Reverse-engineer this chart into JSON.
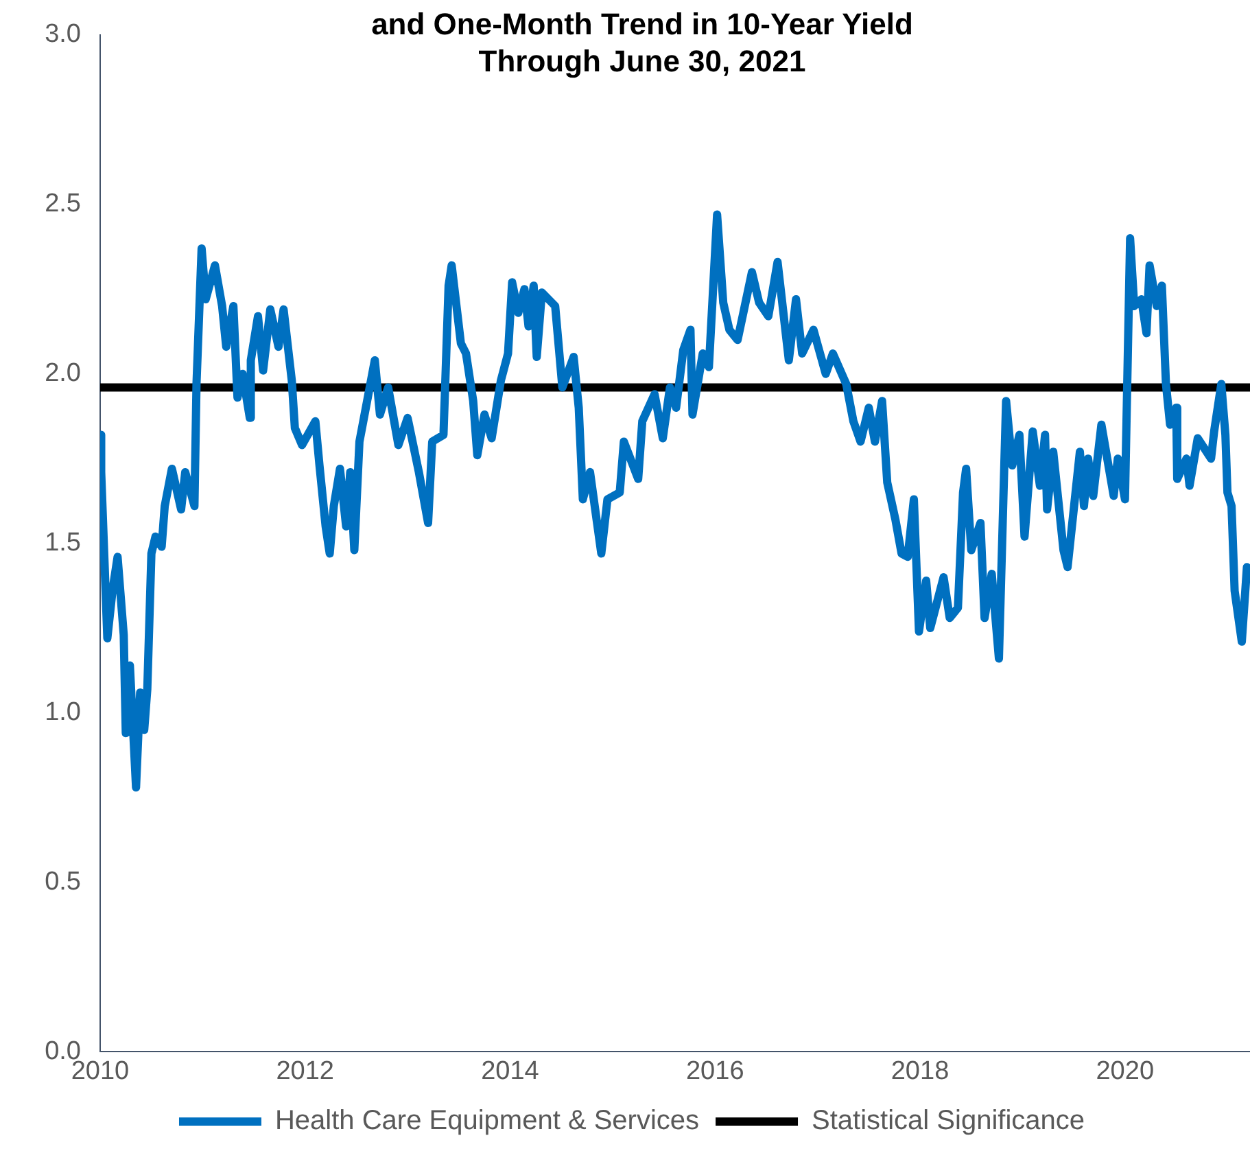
{
  "chart_data": {
    "type": "line",
    "title": "and One-Month Trend in 10-Year Yield\nThrough June 30, 2021",
    "xlim": [
      2010,
      2021.22
    ],
    "xticks": [
      2010,
      2012,
      2014,
      2016,
      2018,
      2020
    ],
    "ylim": [
      0,
      3
    ],
    "yticks": [
      {
        "value": 0,
        "label": "0.0"
      },
      {
        "value": 0.5,
        "label": "0.5"
      },
      {
        "value": 1,
        "label": "1.0"
      },
      {
        "value": 1.5,
        "label": "1.5"
      },
      {
        "value": 2,
        "label": "2.0"
      },
      {
        "value": 2.5,
        "label": "2.5"
      },
      {
        "value": 3,
        "label": "3.0"
      }
    ],
    "grid": false,
    "legend": "bottom",
    "marker": "none",
    "line_style": "solid",
    "series": [
      {
        "name": "Health Care Equipment & Services",
        "color": "#0070c0",
        "x": [
          2010.0,
          2010.01,
          2010.07,
          2010.12,
          2010.17,
          2010.23,
          2010.25,
          2010.29,
          2010.35,
          2010.39,
          2010.43,
          2010.46,
          2010.5,
          2010.54,
          2010.6,
          2010.63,
          2010.7,
          2010.79,
          2010.83,
          2010.92,
          2010.94,
          2010.99,
          2011.03,
          2011.12,
          2011.19,
          2011.23,
          2011.3,
          2011.34,
          2011.39,
          2011.46,
          2011.47,
          2011.54,
          2011.59,
          2011.66,
          2011.74,
          2011.79,
          2011.87,
          2011.9,
          2011.97,
          2012.1,
          2012.14,
          2012.2,
          2012.24,
          2012.28,
          2012.34,
          2012.4,
          2012.44,
          2012.48,
          2012.53,
          2012.68,
          2012.73,
          2012.81,
          2012.91,
          2013.0,
          2013.11,
          2013.2,
          2013.24,
          2013.35,
          2013.4,
          2013.43,
          2013.52,
          2013.57,
          2013.64,
          2013.68,
          2013.75,
          2013.82,
          2013.91,
          2013.98,
          2014.02,
          2014.08,
          2014.14,
          2014.18,
          2014.23,
          2014.26,
          2014.31,
          2014.44,
          2014.51,
          2014.62,
          2014.67,
          2014.71,
          2014.78,
          2014.89,
          2014.95,
          2015.07,
          2015.11,
          2015.25,
          2015.29,
          2015.41,
          2015.49,
          2015.56,
          2015.62,
          2015.69,
          2015.76,
          2015.78,
          2015.88,
          2015.94,
          2016.02,
          2016.08,
          2016.14,
          2016.22,
          2016.36,
          2016.43,
          2016.52,
          2016.61,
          2016.72,
          2016.79,
          2016.85,
          2016.96,
          2017.08,
          2017.15,
          2017.28,
          2017.35,
          2017.42,
          2017.5,
          2017.56,
          2017.63,
          2017.68,
          2017.76,
          2017.82,
          2017.88,
          2017.94,
          2017.99,
          2018.06,
          2018.1,
          2018.23,
          2018.29,
          2018.37,
          2018.42,
          2018.45,
          2018.5,
          2018.59,
          2018.63,
          2018.7,
          2018.77,
          2018.84,
          2018.9,
          2018.97,
          2019.02,
          2019.1,
          2019.17,
          2019.22,
          2019.24,
          2019.3,
          2019.4,
          2019.44,
          2019.56,
          2019.6,
          2019.64,
          2019.69,
          2019.77,
          2019.89,
          2019.93,
          2020.0,
          2020.05,
          2020.09,
          2020.16,
          2020.21,
          2020.24,
          2020.31,
          2020.36,
          2020.4,
          2020.44,
          2020.5,
          2020.51,
          2020.6,
          2020.63,
          2020.71,
          2020.84,
          2020.87,
          2020.94,
          2020.98,
          2021.0,
          2021.04,
          2021.07,
          2021.14,
          2021.19
        ],
        "values": [
          1.82,
          1.71,
          1.22,
          1.36,
          1.46,
          1.23,
          0.94,
          1.14,
          0.78,
          1.06,
          0.95,
          1.07,
          1.47,
          1.52,
          1.49,
          1.61,
          1.72,
          1.6,
          1.71,
          1.61,
          1.97,
          2.37,
          2.22,
          2.32,
          2.2,
          2.08,
          2.2,
          1.93,
          2.0,
          1.87,
          2.04,
          2.17,
          2.01,
          2.19,
          2.08,
          2.19,
          1.98,
          1.84,
          1.79,
          1.86,
          1.73,
          1.55,
          1.47,
          1.61,
          1.72,
          1.55,
          1.71,
          1.48,
          1.8,
          2.04,
          1.88,
          1.96,
          1.79,
          1.87,
          1.71,
          1.56,
          1.8,
          1.82,
          2.26,
          2.32,
          2.09,
          2.06,
          1.92,
          1.76,
          1.88,
          1.81,
          1.98,
          2.06,
          2.27,
          2.18,
          2.25,
          2.14,
          2.26,
          2.05,
          2.24,
          2.2,
          1.96,
          2.05,
          1.9,
          1.63,
          1.71,
          1.47,
          1.63,
          1.65,
          1.8,
          1.69,
          1.86,
          1.94,
          1.81,
          1.96,
          1.9,
          2.07,
          2.13,
          1.88,
          2.06,
          2.02,
          2.47,
          2.21,
          2.13,
          2.1,
          2.3,
          2.21,
          2.17,
          2.33,
          2.04,
          2.22,
          2.06,
          2.13,
          2.0,
          2.06,
          1.97,
          1.86,
          1.8,
          1.9,
          1.8,
          1.92,
          1.68,
          1.57,
          1.47,
          1.46,
          1.63,
          1.24,
          1.39,
          1.25,
          1.4,
          1.28,
          1.31,
          1.65,
          1.72,
          1.48,
          1.56,
          1.28,
          1.41,
          1.16,
          1.92,
          1.73,
          1.82,
          1.52,
          1.83,
          1.67,
          1.82,
          1.6,
          1.77,
          1.48,
          1.43,
          1.77,
          1.61,
          1.75,
          1.64,
          1.85,
          1.64,
          1.75,
          1.63,
          2.4,
          2.2,
          2.22,
          2.12,
          2.32,
          2.2,
          2.26,
          1.97,
          1.85,
          1.9,
          1.69,
          1.75,
          1.67,
          1.81,
          1.75,
          1.83,
          1.97,
          1.82,
          1.65,
          1.61,
          1.36,
          1.21,
          1.43
        ]
      },
      {
        "name": "Statistical Significance",
        "color": "#000000",
        "x": [
          2010,
          2021.22
        ],
        "values": [
          1.96,
          1.96
        ]
      }
    ]
  }
}
